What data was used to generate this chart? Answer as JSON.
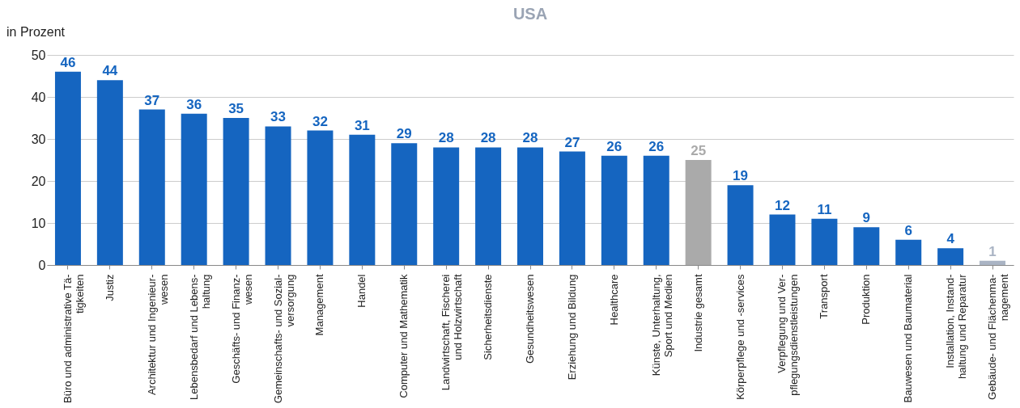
{
  "chart_data": {
    "type": "bar",
    "title": "USA",
    "ylabel": "in Prozent",
    "categories": [
      "Büro und administrative Tä-\ntigkeiten",
      "Justiz",
      "Architektur und Ingenieur-\nwesen",
      "Lebensbedarf und Lebens-\nhaltung",
      "Geschäfts- und Finanz-\nwesen",
      "Gemeinschafts- und Sozial-\nversorgung",
      "Management",
      "Handel",
      "Computer und Mathematik",
      "Landwirtschaft, Fischerei\nund Holzwirtschaft",
      "Sicherheitsdienste",
      "Gesundheitswesen",
      "Erziehung und Bildung",
      "Healthcare",
      "Künste, Unterhaltung,\nSport und Medien",
      "Industrie gesamt",
      "Körperpflege und -services",
      "Verpflegung und Ver-\npflegungsdienstleistungen",
      "Transport",
      "Produktion",
      "Bauwesen und Baumaterial",
      "Installation, Instand-\nhaltung und Reparatur",
      "Gebäude- und Flächenma-\nnagement"
    ],
    "values": [
      46,
      44,
      37,
      36,
      35,
      33,
      32,
      31,
      29,
      28,
      28,
      28,
      27,
      26,
      26,
      25,
      19,
      12,
      11,
      9,
      6,
      4,
      1
    ],
    "colors": [
      "#1565c0",
      "#1565c0",
      "#1565c0",
      "#1565c0",
      "#1565c0",
      "#1565c0",
      "#1565c0",
      "#1565c0",
      "#1565c0",
      "#1565c0",
      "#1565c0",
      "#1565c0",
      "#1565c0",
      "#1565c0",
      "#1565c0",
      "#aaaaaa",
      "#1565c0",
      "#1565c0",
      "#1565c0",
      "#1565c0",
      "#1565c0",
      "#1565c0",
      "#aab4c4"
    ],
    "ylim": [
      0,
      50
    ],
    "yticks": [
      0,
      10,
      20,
      30,
      40,
      50
    ],
    "grid": "y",
    "data_labels": true
  }
}
